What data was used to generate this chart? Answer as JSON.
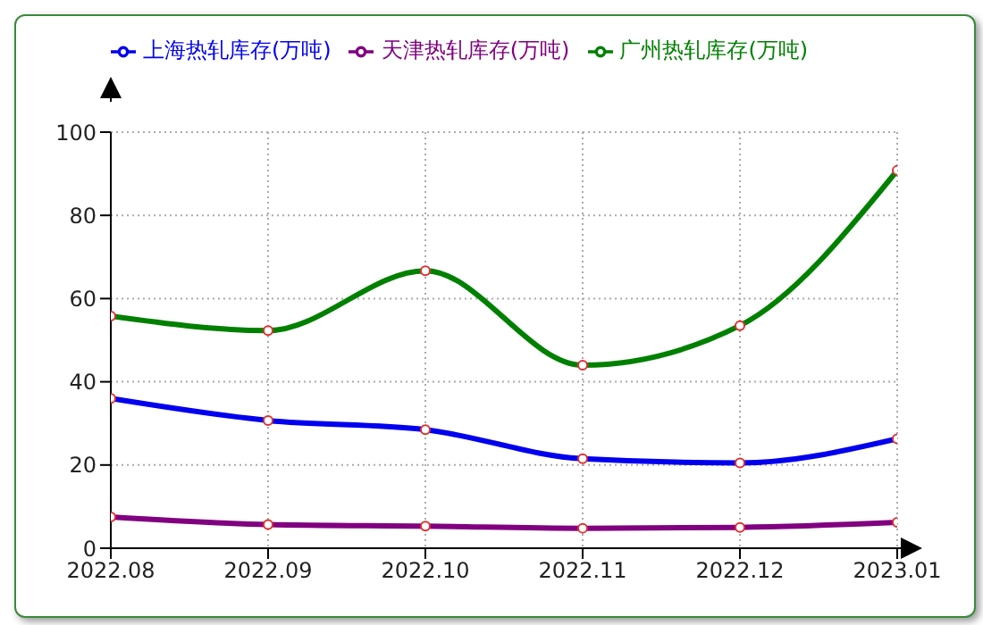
{
  "chart_data": {
    "type": "line",
    "categories": [
      "2022.08",
      "2022.09",
      "2022.10",
      "2022.11",
      "2022.12",
      "2023.01"
    ],
    "series": [
      {
        "name": "广州热轧库存(万吨)",
        "color": "#008000",
        "values": [
          55.8,
          52.3,
          66.7,
          44,
          53.5,
          90.8
        ]
      },
      {
        "name": "上海热轧库存(万吨)",
        "color": "#0000ee",
        "values": [
          36,
          30.7,
          28.5,
          21.5,
          20.5,
          26.3
        ]
      },
      {
        "name": "天津热轧库存(万吨)",
        "color": "#800080",
        "values": [
          7.5,
          5.7,
          5.3,
          4.8,
          5,
          6.2
        ]
      }
    ],
    "ylim": [
      0,
      100
    ],
    "yticks": [
      0,
      20,
      40,
      60,
      80,
      100
    ],
    "grid": true,
    "legend": "top",
    "marker": "circle",
    "line_style": "solid"
  }
}
